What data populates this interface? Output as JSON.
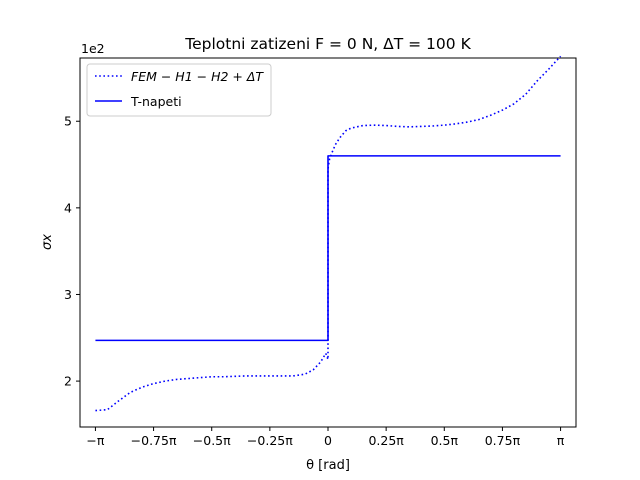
{
  "chart_data": {
    "type": "line",
    "title": "Teplotni zatizeni  F = 0 N, ΔT = 100 K",
    "xlabel": "θ [rad]",
    "ylabel": "σx",
    "y_offset_label": "1e2",
    "xlim": [
      -3.35,
      3.35
    ],
    "ylim": [
      147,
      573
    ],
    "x_ticks": [
      {
        "value": -3.14159,
        "label": "−π"
      },
      {
        "value": -2.35619,
        "label": "−0.75π"
      },
      {
        "value": -1.5708,
        "label": "−0.5π"
      },
      {
        "value": -0.7854,
        "label": "−0.25π"
      },
      {
        "value": 0,
        "label": "0"
      },
      {
        "value": 0.7854,
        "label": "0.25π"
      },
      {
        "value": 1.5708,
        "label": "0.5π"
      },
      {
        "value": 2.35619,
        "label": "0.75π"
      },
      {
        "value": 3.14159,
        "label": "π"
      }
    ],
    "y_ticks": [
      {
        "value": 200,
        "label": "2"
      },
      {
        "value": 300,
        "label": "3"
      },
      {
        "value": 400,
        "label": "4"
      },
      {
        "value": 500,
        "label": "5"
      }
    ],
    "grid": false,
    "legend_position": "top-left",
    "series": [
      {
        "name": "FEM − H1 − H2 + ΔT",
        "style": "dotted",
        "color": "#0000ff",
        "x": [
          -3.14159,
          -2.98,
          -2.83,
          -2.67,
          -2.51,
          -2.36,
          -2.2,
          -2.04,
          -1.88,
          -1.73,
          -1.57,
          -1.41,
          -1.26,
          -1.1,
          -0.94,
          -0.79,
          -0.63,
          -0.47,
          -0.31,
          -0.2,
          -0.1,
          -0.03,
          0.0,
          0.0,
          0.02,
          0.05,
          0.1,
          0.16,
          0.24,
          0.31,
          0.47,
          0.63,
          0.79,
          0.94,
          1.1,
          1.26,
          1.41,
          1.57,
          1.73,
          1.88,
          2.04,
          2.2,
          2.36,
          2.51,
          2.67,
          2.83,
          2.98,
          3.14159
        ],
        "y": [
          166,
          167,
          177,
          187,
          193,
          197,
          200,
          202,
          203,
          204,
          205,
          205,
          205.5,
          206,
          206,
          206,
          206,
          206,
          208,
          213,
          222,
          232,
          225,
          445,
          456,
          463,
          473,
          481,
          489,
          492,
          495,
          495.5,
          495,
          494,
          493.5,
          494,
          494.5,
          495.5,
          497,
          499,
          502,
          507,
          513,
          520,
          531,
          547,
          560,
          575
        ]
      },
      {
        "name": "T-napeti",
        "style": "solid",
        "color": "#0000ff",
        "x": [
          -3.14159,
          0,
          0,
          3.14159
        ],
        "y": [
          247,
          247,
          460,
          460
        ]
      }
    ]
  }
}
